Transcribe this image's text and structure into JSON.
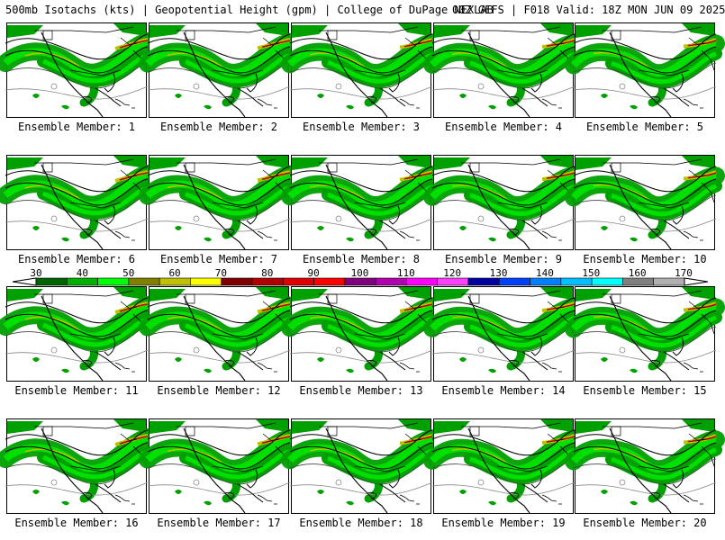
{
  "header": {
    "title": "500mb Isotachs (kts) | Geopotential Height (gpm) | College of DuPage NEXLAB",
    "run": "00Z GEFS | F018 Valid: 18Z MON JUN 09 2025"
  },
  "members": [
    {
      "label": "Ensemble Member: 1"
    },
    {
      "label": "Ensemble Member: 2"
    },
    {
      "label": "Ensemble Member: 3"
    },
    {
      "label": "Ensemble Member: 4"
    },
    {
      "label": "Ensemble Member: 5"
    },
    {
      "label": "Ensemble Member: 6"
    },
    {
      "label": "Ensemble Member: 7"
    },
    {
      "label": "Ensemble Member: 8"
    },
    {
      "label": "Ensemble Member: 9"
    },
    {
      "label": "Ensemble Member: 10"
    },
    {
      "label": "Ensemble Member: 11"
    },
    {
      "label": "Ensemble Member: 12"
    },
    {
      "label": "Ensemble Member: 13"
    },
    {
      "label": "Ensemble Member: 14"
    },
    {
      "label": "Ensemble Member: 15"
    },
    {
      "label": "Ensemble Member: 16"
    },
    {
      "label": "Ensemble Member: 17"
    },
    {
      "label": "Ensemble Member: 18"
    },
    {
      "label": "Ensemble Member: 19"
    },
    {
      "label": "Ensemble Member: 20"
    }
  ],
  "colorbar": {
    "labels": [
      "30",
      "40",
      "50",
      "60",
      "70",
      "80",
      "90",
      "100",
      "110",
      "120",
      "130",
      "140",
      "150",
      "160",
      "170"
    ],
    "colors": [
      "#006400",
      "#00b000",
      "#00ff00",
      "#808000",
      "#c0c000",
      "#ffff00",
      "#800000",
      "#b00000",
      "#e00000",
      "#ff0000",
      "#800080",
      "#b000b0",
      "#ff00ff",
      "#ff40ff",
      "#0000a0",
      "#0040ff",
      "#0080ff",
      "#00c0ff",
      "#00ffff",
      "#808080",
      "#b0b0b0"
    ]
  }
}
